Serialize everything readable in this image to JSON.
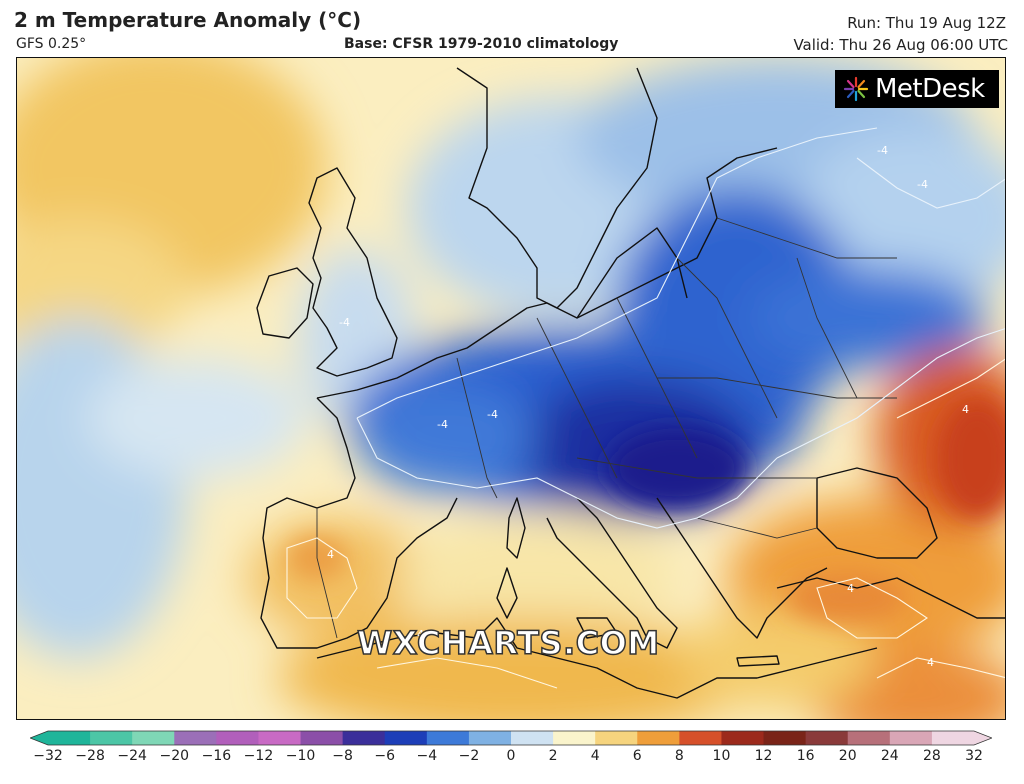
{
  "header": {
    "title": "2 m Temperature Anomaly (°C)",
    "model": "GFS 0.25°",
    "base": "Base: CFSR 1979-2010 climatology",
    "run": "Run: Thu 19 Aug 12Z",
    "valid": "Valid: Thu 26 Aug 06:00 UTC"
  },
  "logo": {
    "text": "MetDesk",
    "icon": "metdesk-starburst-icon"
  },
  "watermark": "WXCHARTS.COM",
  "map": {
    "contour_labels": [
      "-4",
      "-4",
      "-4",
      "-4",
      "-4",
      "4",
      "4",
      "4",
      "4",
      "4"
    ]
  },
  "colorbar": {
    "ticks": [
      "−32",
      "−28",
      "−24",
      "−20",
      "−16",
      "−12",
      "−10",
      "−8",
      "−6",
      "−4",
      "−2",
      "0",
      "2",
      "4",
      "6",
      "8",
      "10",
      "12",
      "16",
      "20",
      "24",
      "28",
      "32"
    ],
    "colors": [
      "#1fb59a",
      "#4cc6a6",
      "#7fd7b6",
      "#9b6fb8",
      "#b15fbb",
      "#c86ac4",
      "#8b4fa8",
      "#3b2f9a",
      "#1d3eb8",
      "#3d7ad8",
      "#7fb1e3",
      "#cfe2f2",
      "#faf4cc",
      "#f6d47e",
      "#ef9e3a",
      "#d6502a",
      "#9c2a1c",
      "#7a2418",
      "#8a3a3a",
      "#b7707a",
      "#d9a6b6",
      "#efd6e2"
    ]
  }
}
